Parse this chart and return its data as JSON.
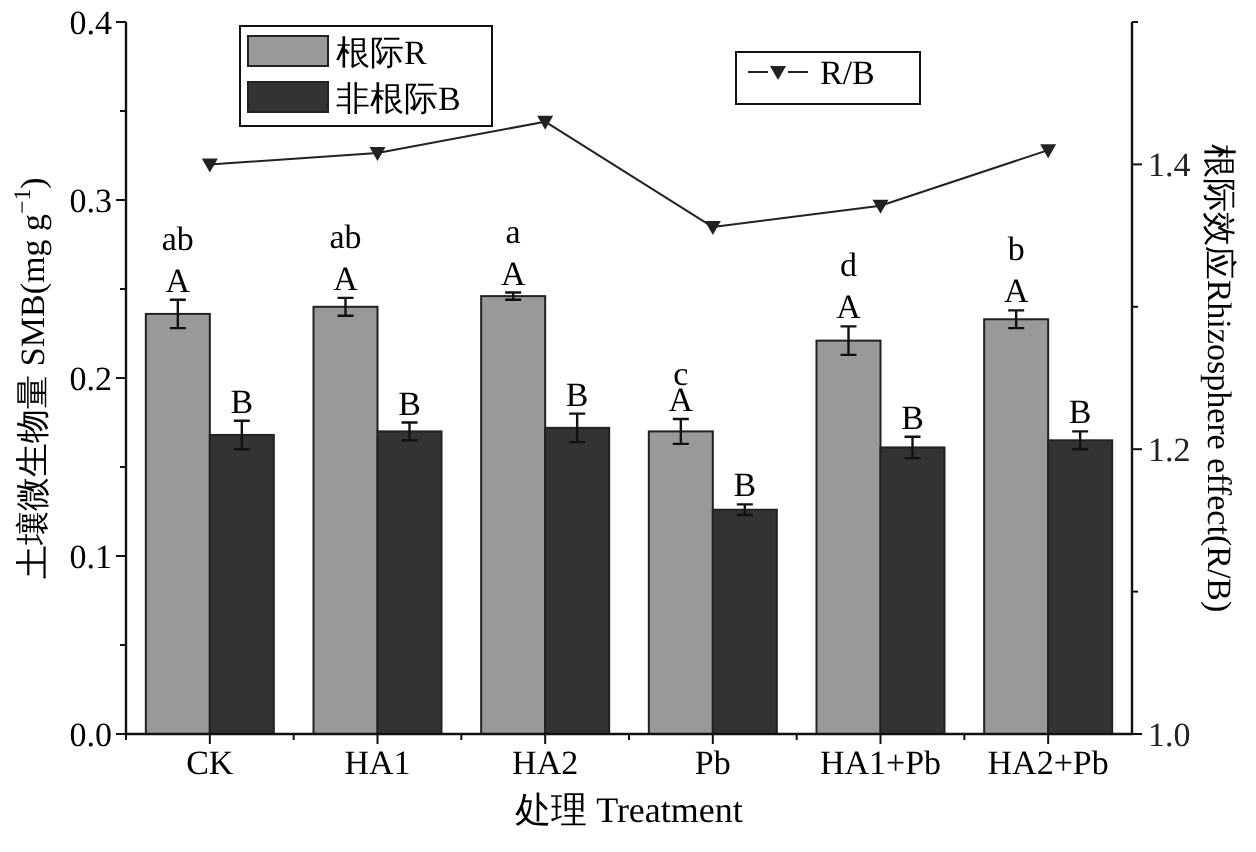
{
  "chart_data": {
    "type": "bar",
    "xlabel": "处理 Treatment",
    "ylabel": "土壤微生物量 SMB(mg g$^{−1}$)",
    "y2label": "根际效应Rhizosphere effect(R/B)",
    "categories": [
      "CK",
      "HA1",
      "HA2",
      "Pb",
      "HA1+Pb",
      "HA2+Pb"
    ],
    "series": [
      {
        "name": "根际R",
        "color": "#999999",
        "values": [
          0.236,
          0.24,
          0.246,
          0.17,
          0.221,
          0.233
        ],
        "errors": [
          0.008,
          0.005,
          0.002,
          0.007,
          0.008,
          0.005
        ]
      },
      {
        "name": "非根际B",
        "color": "#333333",
        "values": [
          0.168,
          0.17,
          0.172,
          0.126,
          0.161,
          0.165
        ],
        "errors": [
          0.008,
          0.005,
          0.008,
          0.003,
          0.006,
          0.005
        ]
      },
      {
        "name": "R/B",
        "type": "line",
        "axis": "y2",
        "color": "#222222",
        "marker": "triangle",
        "values": [
          1.4,
          1.408,
          1.43,
          1.356,
          1.371,
          1.41
        ]
      }
    ],
    "ylim": [
      0,
      0.4
    ],
    "yticks": [
      {
        "value": 0,
        "label": "0.0"
      },
      {
        "value": 0.05,
        "label": null
      },
      0.1,
      {
        "value": 0.15,
        "label": null
      },
      0.2,
      {
        "value": 0.25,
        "label": null
      },
      0.3,
      {
        "value": 0.35,
        "label": null
      },
      0.4
    ],
    "y2lim": [
      1.0,
      1.5
    ],
    "y2ticks": [
      {
        "value": 1.0,
        "label": "1.0"
      },
      {
        "value": 1.1,
        "label": null
      },
      1.2,
      {
        "value": 1.3,
        "label": null
      },
      1.4,
      {
        "value": 1.5,
        "label": null
      }
    ],
    "legend": "top",
    "grid": false,
    "annotations": [
      {
        "text": "A",
        "x": "CK",
        "y": 0.236
      },
      {
        "text": "ab",
        "x": "CK",
        "y": 0.236
      },
      {
        "text": "B",
        "x": "CK",
        "y": 0.168
      },
      {
        "text": "A",
        "x": "HA1",
        "y": 0.24
      },
      {
        "text": "ab",
        "x": "HA1",
        "y": 0.24
      },
      {
        "text": "B",
        "x": "HA1",
        "y": 0.17
      },
      {
        "text": "A",
        "x": "HA2",
        "y": 0.246
      },
      {
        "text": "a",
        "x": "HA2",
        "y": 0.246
      },
      {
        "text": "B",
        "x": "HA2",
        "y": 0.172
      },
      {
        "text": "A",
        "x": "Pb",
        "y": 0.17
      },
      {
        "text": "c",
        "x": "Pb",
        "y": 0.17
      },
      {
        "text": "B",
        "x": "Pb",
        "y": 0.126
      },
      {
        "text": "A",
        "x": "HA1+Pb",
        "y": 0.221
      },
      {
        "text": "d",
        "x": "HA1+Pb",
        "y": 0.221
      },
      {
        "text": "B",
        "x": "HA1+Pb",
        "y": 0.161
      },
      {
        "text": "A",
        "x": "HA2+Pb",
        "y": 0.233
      },
      {
        "text": "b",
        "x": "HA2+Pb",
        "y": 0.233
      },
      {
        "text": "B",
        "x": "HA2+Pb",
        "y": 0.165
      }
    ]
  }
}
